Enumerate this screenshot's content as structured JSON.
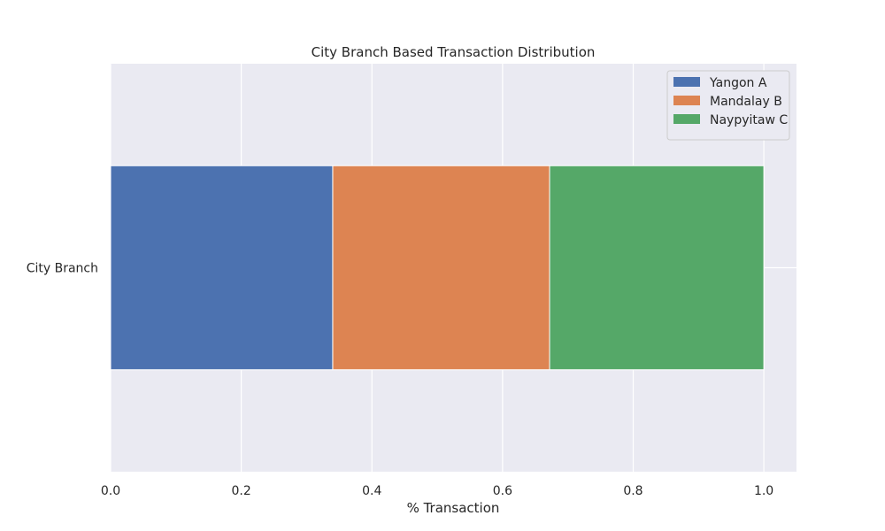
{
  "chart_data": {
    "type": "bar",
    "orientation": "horizontal",
    "stacked": true,
    "title": "City Branch Based Transaction Distribution",
    "xlabel": "% Transaction",
    "ylabel": "",
    "categories": [
      "City Branch"
    ],
    "series": [
      {
        "name": "Yangon A",
        "values": [
          0.34
        ],
        "color": "#4c72b0"
      },
      {
        "name": "Mandalay B",
        "values": [
          0.332
        ],
        "color": "#dd8452"
      },
      {
        "name": "Naypyitaw C",
        "values": [
          0.328
        ],
        "color": "#55a868"
      }
    ],
    "xlim": [
      0,
      1.05
    ],
    "xticks": [
      0.0,
      0.2,
      0.4,
      0.6,
      0.8,
      1.0
    ],
    "xtick_labels": [
      "0.0",
      "0.2",
      "0.4",
      "0.6",
      "0.8",
      "1.0"
    ],
    "grid": true,
    "background": "#eaeaf2",
    "legend_position": "top-right"
  }
}
